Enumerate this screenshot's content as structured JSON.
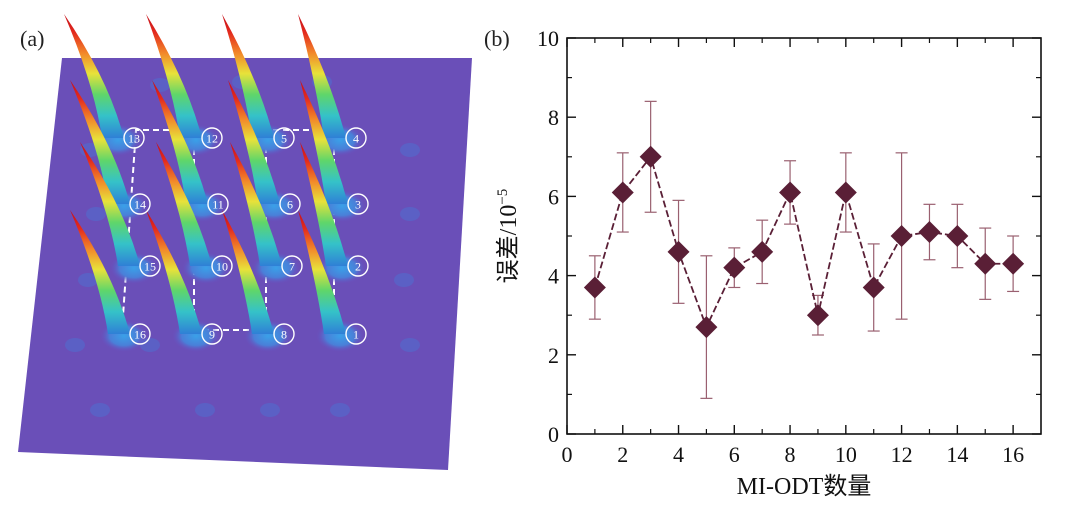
{
  "panel_a": {
    "label": "(a)",
    "site_labels": [
      "1",
      "2",
      "3",
      "4",
      "5",
      "6",
      "7",
      "8",
      "9",
      "10",
      "11",
      "12",
      "13",
      "14",
      "15",
      "16"
    ]
  },
  "panel_b": {
    "label": "(b)"
  },
  "chart_data": {
    "type": "line",
    "title": "",
    "xlabel": "MI-ODT数量",
    "ylabel_main": "误差/10",
    "ylabel_exp": "−5",
    "xlim": [
      0,
      17
    ],
    "ylim": [
      0,
      10
    ],
    "xticks": [
      0,
      2,
      4,
      6,
      8,
      10,
      12,
      14,
      16
    ],
    "yticks": [
      0,
      2,
      4,
      6,
      8,
      10
    ],
    "grid": false,
    "marker": "diamond",
    "line_style": "dashed",
    "color": "#5a1f36",
    "series": [
      {
        "x": [
          1,
          2,
          3,
          4,
          5,
          6,
          7,
          8,
          9,
          10,
          11,
          12,
          13,
          14,
          15,
          16
        ],
        "y": [
          3.7,
          6.1,
          7.0,
          4.6,
          2.7,
          4.2,
          4.6,
          6.1,
          3.0,
          6.1,
          3.7,
          5.0,
          5.1,
          5.0,
          4.3,
          4.3
        ],
        "err_low": [
          2.9,
          5.1,
          5.6,
          3.3,
          0.9,
          3.7,
          3.8,
          5.3,
          2.5,
          5.1,
          2.6,
          2.9,
          4.4,
          4.2,
          3.4,
          3.6
        ],
        "err_high": [
          4.5,
          7.1,
          8.4,
          5.9,
          4.5,
          4.7,
          5.4,
          6.9,
          3.5,
          7.1,
          4.8,
          7.1,
          5.8,
          5.8,
          5.2,
          5.0
        ]
      }
    ]
  }
}
